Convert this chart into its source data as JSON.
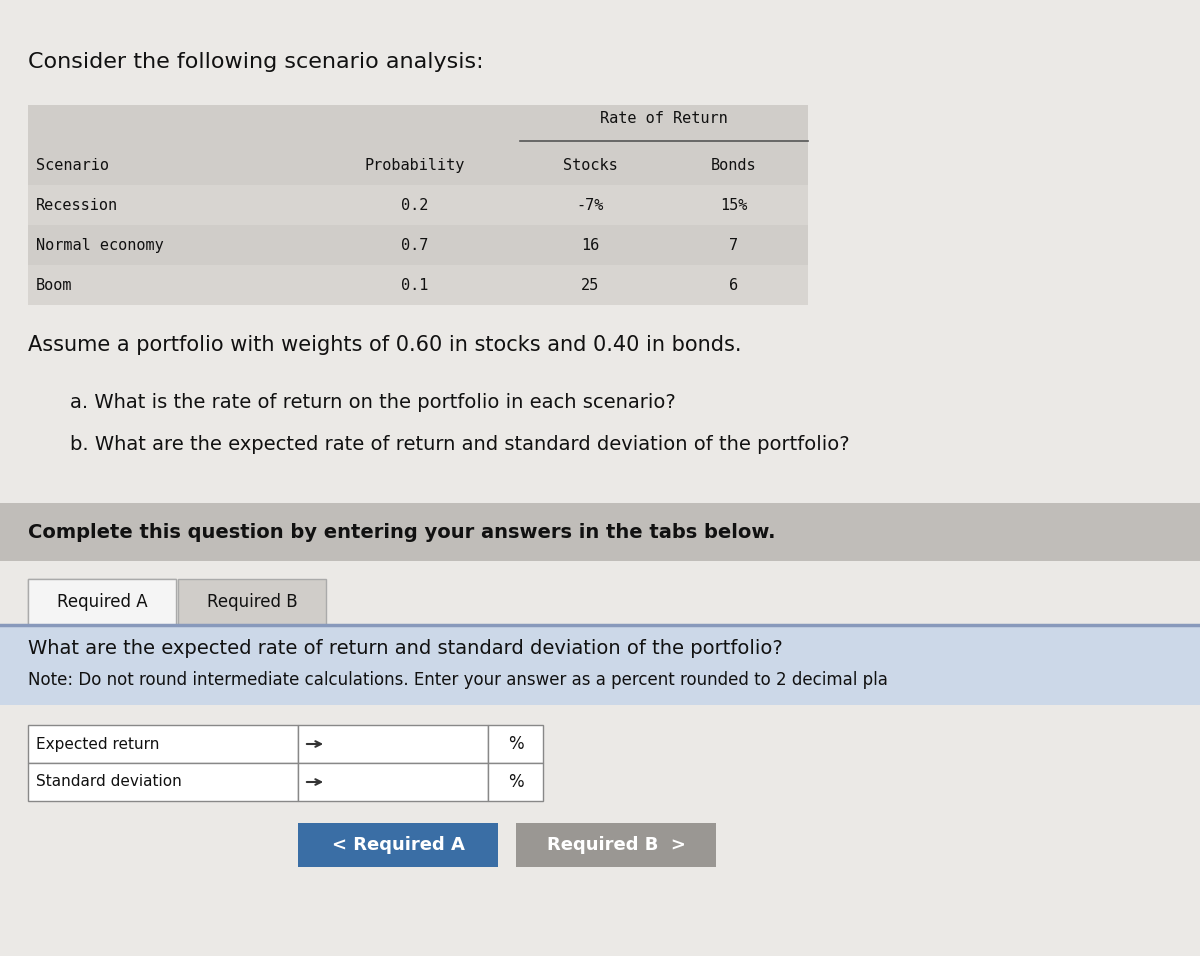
{
  "bg_color": "#ebe9e6",
  "title_text": "Consider the following scenario analysis:",
  "table_header_top": "Rate of Return",
  "table_cols": [
    "Scenario",
    "Probability",
    "Stocks",
    "Bonds"
  ],
  "table_rows": [
    [
      "Recession",
      "0.2",
      "-7%",
      "15%"
    ],
    [
      "Normal economy",
      "0.7",
      "16",
      "7"
    ],
    [
      "Boom",
      "0.1",
      "25",
      "6"
    ]
  ],
  "table_bg_full": "#d0cdc9",
  "table_bg_row_dark": "#c8c5c1",
  "table_bg_row_light": "#d8d5d1",
  "assume_text": "Assume a portfolio with weights of 0.60 in stocks and 0.40 in bonds.",
  "sub_a": "a. What is the rate of return on the portfolio in each scenario?",
  "sub_b": "b. What are the expected rate of return and standard deviation of the portfolio?",
  "complete_text": "Complete this question by entering your answers in the tabs below.",
  "complete_bg": "#c0bdb9",
  "tab_a": "Required A",
  "tab_b": "Required B",
  "tab_bg_active": "#f5f5f5",
  "tab_bg_inactive": "#d0cdc9",
  "question_text": "What are the expected rate of return and standard deviation of the portfolio?",
  "note_text": "Note: Do not round intermediate calculations. Enter your answer as a percent rounded to 2 decimal pla",
  "question_bg": "#ccd8e8",
  "input_rows": [
    "Expected return",
    "Standard deviation"
  ],
  "btn_req_a_text": "< Required A",
  "btn_req_a_bg": "#3a6ea5",
  "btn_req_b_text": "Required B  >",
  "btn_req_b_bg": "#9a9793",
  "font_mono": "monospace",
  "font_sans": "DejaVu Sans"
}
